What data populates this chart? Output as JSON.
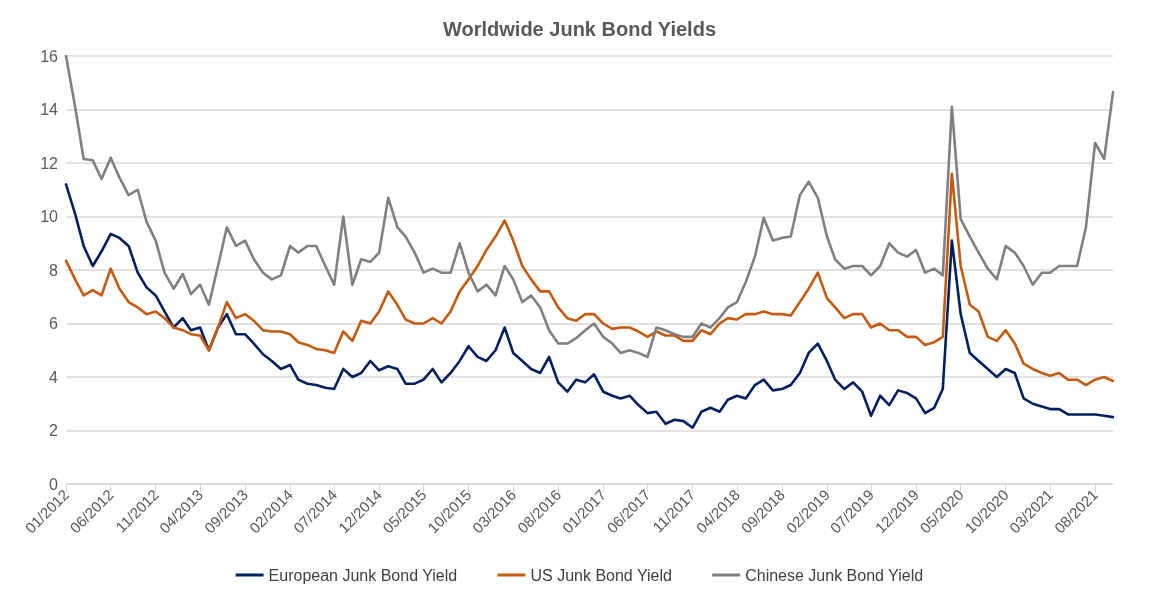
{
  "chart_data": {
    "type": "line",
    "title": "Worldwide Junk Bond Yields",
    "x": [
      "2012-01",
      "2012-02",
      "2012-03",
      "2012-04",
      "2012-05",
      "2012-06",
      "2012-07",
      "2012-08",
      "2012-09",
      "2012-10",
      "2012-11",
      "2012-12",
      "2013-01",
      "2013-02",
      "2013-03",
      "2013-04",
      "2013-05",
      "2013-06",
      "2013-07",
      "2013-08",
      "2013-09",
      "2013-10",
      "2013-11",
      "2013-12",
      "2014-01",
      "2014-02",
      "2014-03",
      "2014-04",
      "2014-05",
      "2014-06",
      "2014-07",
      "2014-08",
      "2014-09",
      "2014-10",
      "2014-11",
      "2014-12",
      "2015-01",
      "2015-02",
      "2015-03",
      "2015-04",
      "2015-05",
      "2015-06",
      "2015-07",
      "2015-08",
      "2015-09",
      "2015-10",
      "2015-11",
      "2015-12",
      "2016-01",
      "2016-02",
      "2016-03",
      "2016-04",
      "2016-05",
      "2016-06",
      "2016-07",
      "2016-08",
      "2016-09",
      "2016-10",
      "2016-11",
      "2016-12",
      "2017-01",
      "2017-02",
      "2017-03",
      "2017-04",
      "2017-05",
      "2017-06",
      "2017-07",
      "2017-08",
      "2017-09",
      "2017-10",
      "2017-11",
      "2017-12",
      "2018-01",
      "2018-02",
      "2018-03",
      "2018-04",
      "2018-05",
      "2018-06",
      "2018-07",
      "2018-08",
      "2018-09",
      "2018-10",
      "2018-11",
      "2018-12",
      "2019-01",
      "2019-02",
      "2019-03",
      "2019-04",
      "2019-05",
      "2019-06",
      "2019-07",
      "2019-08",
      "2019-09",
      "2019-10",
      "2019-11",
      "2019-12",
      "2020-01",
      "2020-02",
      "2020-03",
      "2020-04",
      "2020-05",
      "2020-06",
      "2020-07",
      "2020-08",
      "2020-09",
      "2020-10",
      "2020-11",
      "2020-12",
      "2021-01",
      "2021-02",
      "2021-03",
      "2021-04",
      "2021-05",
      "2021-06",
      "2021-07",
      "2021-08",
      "2021-09",
      "2021-10"
    ],
    "series": [
      {
        "name": "European Junk Bond Yield",
        "color": "#002060",
        "values": [
          11.2,
          10.1,
          8.9,
          8.15,
          8.7,
          9.35,
          9.2,
          8.9,
          7.9,
          7.35,
          7.05,
          6.45,
          5.85,
          6.2,
          5.75,
          5.85,
          5.0,
          5.85,
          6.35,
          5.6,
          5.6,
          5.25,
          4.85,
          4.6,
          4.3,
          4.45,
          3.9,
          3.75,
          3.7,
          3.6,
          3.55,
          4.3,
          4.0,
          4.15,
          4.6,
          4.25,
          4.4,
          4.3,
          3.75,
          3.75,
          3.9,
          4.3,
          3.8,
          4.15,
          4.6,
          5.15,
          4.75,
          4.6,
          5.0,
          5.85,
          4.9,
          4.6,
          4.3,
          4.15,
          4.75,
          3.8,
          3.45,
          3.9,
          3.8,
          4.1,
          3.45,
          3.3,
          3.2,
          3.3,
          2.95,
          2.65,
          2.7,
          2.25,
          2.4,
          2.35,
          2.1,
          2.7,
          2.85,
          2.7,
          3.15,
          3.3,
          3.2,
          3.7,
          3.9,
          3.5,
          3.55,
          3.7,
          4.15,
          4.9,
          5.25,
          4.6,
          3.9,
          3.55,
          3.8,
          3.45,
          2.55,
          3.3,
          2.95,
          3.5,
          3.4,
          3.2,
          2.65,
          2.85,
          3.55,
          9.1,
          6.35,
          4.9,
          4.6,
          4.3,
          4.0,
          4.3,
          4.15,
          3.2,
          3.0,
          2.9,
          2.8,
          2.8,
          2.6,
          2.6,
          2.6,
          2.6,
          2.55,
          2.5
        ]
      },
      {
        "name": "US Junk Bond Yield",
        "color": "#c55a11",
        "values": [
          8.35,
          7.65,
          7.05,
          7.25,
          7.05,
          8.05,
          7.3,
          6.8,
          6.6,
          6.35,
          6.45,
          6.2,
          5.85,
          5.75,
          5.6,
          5.55,
          5.0,
          5.85,
          6.8,
          6.2,
          6.35,
          6.1,
          5.75,
          5.7,
          5.7,
          5.6,
          5.3,
          5.2,
          5.05,
          5.0,
          4.9,
          5.7,
          5.35,
          6.1,
          6.0,
          6.45,
          7.2,
          6.7,
          6.15,
          6.0,
          6.0,
          6.2,
          6.0,
          6.45,
          7.2,
          7.65,
          8.15,
          8.75,
          9.25,
          9.85,
          9.1,
          8.15,
          7.65,
          7.2,
          7.2,
          6.6,
          6.2,
          6.1,
          6.35,
          6.35,
          6.0,
          5.8,
          5.85,
          5.85,
          5.7,
          5.5,
          5.7,
          5.55,
          5.55,
          5.35,
          5.35,
          5.75,
          5.6,
          6.0,
          6.2,
          6.15,
          6.35,
          6.35,
          6.45,
          6.35,
          6.35,
          6.3,
          6.8,
          7.3,
          7.9,
          6.95,
          6.6,
          6.2,
          6.35,
          6.35,
          5.85,
          6.0,
          5.75,
          5.75,
          5.5,
          5.5,
          5.2,
          5.3,
          5.5,
          11.6,
          8.15,
          6.7,
          6.45,
          5.5,
          5.35,
          5.75,
          5.25,
          4.5,
          4.3,
          4.15,
          4.05,
          4.15,
          3.9,
          3.9,
          3.7,
          3.9,
          4.0,
          3.85
        ]
      },
      {
        "name": "Chinese Junk Bond Yield",
        "color": "#808080",
        "values": [
          16.0,
          14.1,
          12.15,
          12.1,
          11.4,
          12.2,
          11.45,
          10.8,
          11.0,
          9.8,
          9.1,
          7.9,
          7.3,
          7.85,
          7.1,
          7.45,
          6.7,
          8.15,
          9.6,
          8.9,
          9.1,
          8.4,
          7.9,
          7.65,
          7.8,
          8.9,
          8.65,
          8.9,
          8.9,
          8.15,
          7.45,
          10.0,
          7.45,
          8.4,
          8.3,
          8.65,
          10.7,
          9.6,
          9.25,
          8.65,
          7.9,
          8.05,
          7.9,
          7.9,
          9.0,
          7.9,
          7.2,
          7.45,
          7.05,
          8.15,
          7.65,
          6.8,
          7.05,
          6.6,
          5.75,
          5.25,
          5.25,
          5.45,
          5.75,
          6.0,
          5.5,
          5.25,
          4.9,
          5.0,
          4.9,
          4.75,
          5.85,
          5.75,
          5.6,
          5.5,
          5.5,
          6.0,
          5.85,
          6.2,
          6.6,
          6.8,
          7.55,
          8.5,
          9.95,
          9.1,
          9.2,
          9.25,
          10.8,
          11.3,
          10.7,
          9.25,
          8.4,
          8.05,
          8.15,
          8.15,
          7.8,
          8.15,
          9.0,
          8.65,
          8.5,
          8.75,
          7.9,
          8.05,
          7.8,
          14.1,
          9.9,
          9.25,
          8.65,
          8.05,
          7.65,
          8.9,
          8.65,
          8.15,
          7.45,
          7.9,
          7.9,
          8.15,
          8.15,
          8.15,
          9.6,
          12.75,
          12.15,
          14.65
        ]
      }
    ],
    "xlim": [
      "2012-01",
      "2021-10"
    ],
    "xticks": [
      {
        "value": "2012-01",
        "label": "01/2012"
      },
      {
        "value": "2012-06",
        "label": "06/2012"
      },
      {
        "value": "2012-11",
        "label": "11/2012"
      },
      {
        "value": "2013-04",
        "label": "04/2013"
      },
      {
        "value": "2013-09",
        "label": "09/2013"
      },
      {
        "value": "2014-02",
        "label": "02/2014"
      },
      {
        "value": "2014-07",
        "label": "07/2014"
      },
      {
        "value": "2014-12",
        "label": "12/2014"
      },
      {
        "value": "2015-05",
        "label": "05/2015"
      },
      {
        "value": "2015-10",
        "label": "10/2015"
      },
      {
        "value": "2016-03",
        "label": "03/2016"
      },
      {
        "value": "2016-08",
        "label": "08/2016"
      },
      {
        "value": "2017-01",
        "label": "01/2017"
      },
      {
        "value": "2017-06",
        "label": "06/2017"
      },
      {
        "value": "2017-11",
        "label": "11/2017"
      },
      {
        "value": "2018-04",
        "label": "04/2018"
      },
      {
        "value": "2018-09",
        "label": "09/2018"
      },
      {
        "value": "2019-02",
        "label": "02/2019"
      },
      {
        "value": "2019-07",
        "label": "07/2019"
      },
      {
        "value": "2019-12",
        "label": "12/2019"
      },
      {
        "value": "2020-05",
        "label": "05/2020"
      },
      {
        "value": "2020-10",
        "label": "10/2020"
      },
      {
        "value": "2021-03",
        "label": "03/2021"
      },
      {
        "value": "2021-08",
        "label": "08/2021"
      }
    ],
    "ylim": [
      0,
      16
    ],
    "yticks": [
      0,
      2,
      4,
      6,
      8,
      10,
      12,
      14,
      16
    ],
    "grid": "y",
    "legend": "bottom",
    "marker": "none",
    "line_style": "solid"
  }
}
